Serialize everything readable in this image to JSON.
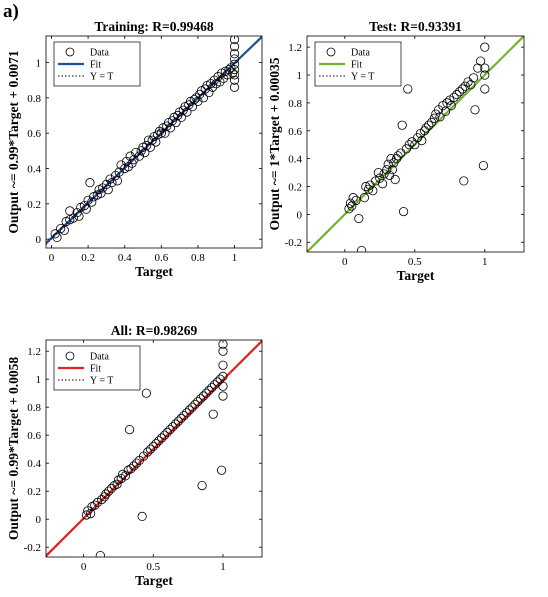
{
  "panel_label": "a)",
  "legend_labels": {
    "data": "Data",
    "fit": "Fit",
    "ref": "Y = T"
  },
  "chart_data": [
    {
      "type": "scatter",
      "title": "Training: R=0.99468",
      "xlabel": "Target",
      "ylabel": "Output ~= 0.99*Target + 0.0071",
      "xlim": [
        -0.03,
        1.15
      ],
      "ylim": [
        -0.05,
        1.15
      ],
      "xticks": [
        0,
        0.2,
        0.4,
        0.6,
        0.8,
        1
      ],
      "yticks": [
        0,
        0.2,
        0.4,
        0.6,
        0.8,
        1
      ],
      "fit": {
        "slope": 0.99,
        "intercept": 0.0071,
        "color": "#1f4e9c"
      },
      "grid": false,
      "legend": "top-left",
      "points": [
        [
          0.02,
          0.03
        ],
        [
          0.03,
          0.01
        ],
        [
          0.05,
          0.06
        ],
        [
          0.07,
          0.05
        ],
        [
          0.08,
          0.1
        ],
        [
          0.1,
          0.11
        ],
        [
          0.1,
          0.16
        ],
        [
          0.12,
          0.12
        ],
        [
          0.14,
          0.15
        ],
        [
          0.15,
          0.13
        ],
        [
          0.16,
          0.18
        ],
        [
          0.18,
          0.19
        ],
        [
          0.19,
          0.17
        ],
        [
          0.2,
          0.22
        ],
        [
          0.21,
          0.32
        ],
        [
          0.22,
          0.21
        ],
        [
          0.23,
          0.24
        ],
        [
          0.25,
          0.25
        ],
        [
          0.26,
          0.28
        ],
        [
          0.27,
          0.26
        ],
        [
          0.28,
          0.29
        ],
        [
          0.3,
          0.31
        ],
        [
          0.31,
          0.28
        ],
        [
          0.32,
          0.34
        ],
        [
          0.33,
          0.32
        ],
        [
          0.35,
          0.36
        ],
        [
          0.36,
          0.33
        ],
        [
          0.37,
          0.38
        ],
        [
          0.38,
          0.42
        ],
        [
          0.4,
          0.4
        ],
        [
          0.41,
          0.44
        ],
        [
          0.42,
          0.41
        ],
        [
          0.43,
          0.47
        ],
        [
          0.44,
          0.43
        ],
        [
          0.45,
          0.45
        ],
        [
          0.46,
          0.49
        ],
        [
          0.48,
          0.47
        ],
        [
          0.49,
          0.5
        ],
        [
          0.5,
          0.52
        ],
        [
          0.51,
          0.49
        ],
        [
          0.52,
          0.53
        ],
        [
          0.53,
          0.56
        ],
        [
          0.54,
          0.52
        ],
        [
          0.55,
          0.56
        ],
        [
          0.56,
          0.58
        ],
        [
          0.57,
          0.55
        ],
        [
          0.58,
          0.59
        ],
        [
          0.59,
          0.61
        ],
        [
          0.6,
          0.6
        ],
        [
          0.61,
          0.63
        ],
        [
          0.62,
          0.6
        ],
        [
          0.63,
          0.64
        ],
        [
          0.64,
          0.66
        ],
        [
          0.65,
          0.63
        ],
        [
          0.66,
          0.67
        ],
        [
          0.67,
          0.69
        ],
        [
          0.68,
          0.66
        ],
        [
          0.69,
          0.7
        ],
        [
          0.7,
          0.72
        ],
        [
          0.71,
          0.69
        ],
        [
          0.72,
          0.73
        ],
        [
          0.73,
          0.75
        ],
        [
          0.74,
          0.72
        ],
        [
          0.75,
          0.76
        ],
        [
          0.76,
          0.78
        ],
        [
          0.77,
          0.75
        ],
        [
          0.78,
          0.79
        ],
        [
          0.79,
          0.8
        ],
        [
          0.8,
          0.78
        ],
        [
          0.81,
          0.82
        ],
        [
          0.82,
          0.84
        ],
        [
          0.83,
          0.8
        ],
        [
          0.84,
          0.85
        ],
        [
          0.85,
          0.87
        ],
        [
          0.86,
          0.83
        ],
        [
          0.87,
          0.88
        ],
        [
          0.88,
          0.86
        ],
        [
          0.89,
          0.9
        ],
        [
          0.9,
          0.88
        ],
        [
          0.91,
          0.92
        ],
        [
          0.92,
          0.89
        ],
        [
          0.93,
          0.94
        ],
        [
          0.94,
          0.91
        ],
        [
          0.95,
          0.95
        ],
        [
          0.96,
          0.93
        ],
        [
          0.97,
          0.96
        ],
        [
          0.98,
          0.97
        ],
        [
          0.99,
          0.94
        ],
        [
          1,
          0.86
        ],
        [
          1,
          0.9
        ],
        [
          1,
          0.93
        ],
        [
          1,
          0.96
        ],
        [
          1,
          0.99
        ],
        [
          1,
          1.02
        ],
        [
          1,
          1.05
        ],
        [
          1,
          1.09
        ],
        [
          1,
          1.13
        ]
      ]
    },
    {
      "type": "scatter",
      "title": "Test: R=0.93391",
      "xlabel": "Target",
      "ylabel": "Output ~= 1*Target + 0.00035",
      "xlim": [
        -0.27,
        1.28
      ],
      "ylim": [
        -0.27,
        1.28
      ],
      "xticks": [
        0,
        0.5,
        1
      ],
      "yticks": [
        -0.2,
        0,
        0.2,
        0.4,
        0.6,
        0.8,
        1,
        1.2
      ],
      "fit": {
        "slope": 1.0,
        "intercept": 0.00035,
        "color": "#6fb52c"
      },
      "grid": false,
      "legend": "top-left",
      "points": [
        [
          0.03,
          0.04
        ],
        [
          0.04,
          0.08
        ],
        [
          0.05,
          0.06
        ],
        [
          0.06,
          0.12
        ],
        [
          0.08,
          0.1
        ],
        [
          0.1,
          -0.03
        ],
        [
          0.12,
          -0.26
        ],
        [
          0.14,
          0.12
        ],
        [
          0.15,
          0.2
        ],
        [
          0.17,
          0.18
        ],
        [
          0.18,
          0.21
        ],
        [
          0.2,
          0.17
        ],
        [
          0.22,
          0.24
        ],
        [
          0.24,
          0.3
        ],
        [
          0.25,
          0.26
        ],
        [
          0.27,
          0.22
        ],
        [
          0.28,
          0.29
        ],
        [
          0.3,
          0.32
        ],
        [
          0.31,
          0.36
        ],
        [
          0.32,
          0.28
        ],
        [
          0.33,
          0.4
        ],
        [
          0.34,
          0.32
        ],
        [
          0.35,
          0.37
        ],
        [
          0.36,
          0.25
        ],
        [
          0.37,
          0.4
        ],
        [
          0.38,
          0.42
        ],
        [
          0.4,
          0.44
        ],
        [
          0.41,
          0.64
        ],
        [
          0.42,
          0.02
        ],
        [
          0.44,
          0.47
        ],
        [
          0.45,
          0.9
        ],
        [
          0.46,
          0.5
        ],
        [
          0.48,
          0.52
        ],
        [
          0.5,
          0.5
        ],
        [
          0.52,
          0.55
        ],
        [
          0.54,
          0.58
        ],
        [
          0.55,
          0.53
        ],
        [
          0.57,
          0.6
        ],
        [
          0.58,
          0.62
        ],
        [
          0.6,
          0.64
        ],
        [
          0.62,
          0.66
        ],
        [
          0.64,
          0.69
        ],
        [
          0.65,
          0.72
        ],
        [
          0.67,
          0.75
        ],
        [
          0.68,
          0.7
        ],
        [
          0.7,
          0.78
        ],
        [
          0.72,
          0.74
        ],
        [
          0.73,
          0.8
        ],
        [
          0.75,
          0.82
        ],
        [
          0.76,
          0.78
        ],
        [
          0.78,
          0.84
        ],
        [
          0.8,
          0.86
        ],
        [
          0.82,
          0.88
        ],
        [
          0.84,
          0.9
        ],
        [
          0.85,
          0.24
        ],
        [
          0.86,
          0.92
        ],
        [
          0.88,
          0.95
        ],
        [
          0.9,
          0.93
        ],
        [
          0.92,
          0.98
        ],
        [
          0.93,
          0.75
        ],
        [
          0.95,
          1.05
        ],
        [
          0.97,
          1.1
        ],
        [
          0.99,
          0.35
        ],
        [
          1,
          0.9
        ],
        [
          1,
          1
        ],
        [
          1,
          1.05
        ],
        [
          1,
          1.2
        ]
      ]
    },
    {
      "type": "scatter",
      "title": "All: R=0.98269",
      "xlabel": "Target",
      "ylabel": "Output ~= 0.99*Target + 0.0058",
      "xlim": [
        -0.27,
        1.28
      ],
      "ylim": [
        -0.27,
        1.28
      ],
      "xticks": [
        0,
        0.5,
        1
      ],
      "yticks": [
        -0.2,
        0,
        0.2,
        0.4,
        0.6,
        0.8,
        1,
        1.2
      ],
      "fit": {
        "slope": 0.99,
        "intercept": 0.0058,
        "color": "#e02424"
      },
      "grid": false,
      "legend": "top-left",
      "points": [
        [
          0.02,
          0.03
        ],
        [
          0.03,
          0.06
        ],
        [
          0.05,
          0.04
        ],
        [
          0.06,
          0.09
        ],
        [
          0.08,
          0.1
        ],
        [
          0.1,
          0.12
        ],
        [
          0.12,
          -0.26
        ],
        [
          0.13,
          0.14
        ],
        [
          0.15,
          0.16
        ],
        [
          0.16,
          0.18
        ],
        [
          0.18,
          0.2
        ],
        [
          0.2,
          0.22
        ],
        [
          0.22,
          0.24
        ],
        [
          0.24,
          0.25
        ],
        [
          0.25,
          0.28
        ],
        [
          0.27,
          0.29
        ],
        [
          0.28,
          0.32
        ],
        [
          0.3,
          0.31
        ],
        [
          0.32,
          0.35
        ],
        [
          0.33,
          0.64
        ],
        [
          0.34,
          0.36
        ],
        [
          0.36,
          0.38
        ],
        [
          0.38,
          0.4
        ],
        [
          0.4,
          0.42
        ],
        [
          0.42,
          0.02
        ],
        [
          0.43,
          0.45
        ],
        [
          0.45,
          0.9
        ],
        [
          0.46,
          0.48
        ],
        [
          0.48,
          0.5
        ],
        [
          0.5,
          0.52
        ],
        [
          0.52,
          0.54
        ],
        [
          0.54,
          0.56
        ],
        [
          0.56,
          0.58
        ],
        [
          0.58,
          0.6
        ],
        [
          0.6,
          0.62
        ],
        [
          0.62,
          0.64
        ],
        [
          0.64,
          0.66
        ],
        [
          0.66,
          0.68
        ],
        [
          0.68,
          0.7
        ],
        [
          0.7,
          0.72
        ],
        [
          0.72,
          0.74
        ],
        [
          0.74,
          0.76
        ],
        [
          0.76,
          0.78
        ],
        [
          0.78,
          0.8
        ],
        [
          0.8,
          0.82
        ],
        [
          0.82,
          0.84
        ],
        [
          0.84,
          0.86
        ],
        [
          0.85,
          0.24
        ],
        [
          0.86,
          0.88
        ],
        [
          0.88,
          0.9
        ],
        [
          0.9,
          0.92
        ],
        [
          0.92,
          0.94
        ],
        [
          0.93,
          0.75
        ],
        [
          0.94,
          0.96
        ],
        [
          0.96,
          0.98
        ],
        [
          0.98,
          1
        ],
        [
          0.99,
          0.35
        ],
        [
          1,
          0.88
        ],
        [
          1,
          0.95
        ],
        [
          1,
          1.02
        ],
        [
          1,
          1.1
        ],
        [
          1,
          1.2
        ],
        [
          1,
          1.25
        ]
      ]
    }
  ]
}
